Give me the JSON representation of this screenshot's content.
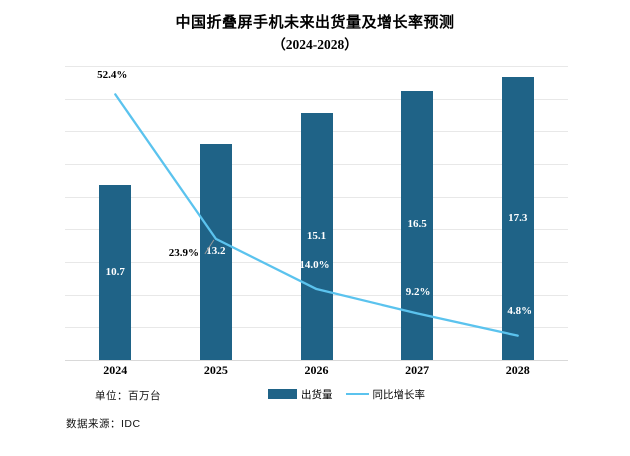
{
  "title": {
    "line1": "中国折叠屏手机未来出货量及增长率预测",
    "line2": "（2024-2028）"
  },
  "chart_data": {
    "type": "combo",
    "title": "中国折叠屏手机未来出货量及增长率预测（2024-2028）",
    "categories": [
      "2024",
      "2025",
      "2026",
      "2027",
      "2028"
    ],
    "series": [
      {
        "name": "出货量",
        "kind": "bar",
        "unit": "百万台",
        "values": [
          10.7,
          13.2,
          15.1,
          16.5,
          17.3
        ],
        "data_labels": [
          "10.7",
          "13.2",
          "15.1",
          "16.5",
          "17.3"
        ],
        "color": "#1f6387",
        "axis": {
          "min": 0,
          "max": 18,
          "gridline_step": 2,
          "tick_labels_visible": false
        }
      },
      {
        "name": "同比增长率",
        "kind": "line",
        "values_percent": [
          52.4,
          23.9,
          14.0,
          9.2,
          4.8
        ],
        "data_labels": [
          "52.4%",
          "23.9%",
          "14.0%",
          "9.2%",
          "4.8%"
        ],
        "color": "#5bc3ee",
        "axis": {
          "min": 0,
          "max": 58,
          "tick_labels_visible": false
        }
      }
    ],
    "grid": {
      "horizontal": true,
      "color": "#e8e8e8"
    },
    "legend_position": "bottom"
  },
  "legend": {
    "bar_label": "出货量",
    "line_label": "同比增长率"
  },
  "footer": {
    "unit_label": "单位：百万台",
    "source_label": "数据来源：IDC"
  },
  "colors": {
    "bar": "#1f6387",
    "line": "#5bc3ee",
    "grid": "#e8e8e8",
    "baseline": "#d9d9d9",
    "bar_value_text": "#ffffff",
    "text": "#000000",
    "leader": "#9a9a9a"
  }
}
